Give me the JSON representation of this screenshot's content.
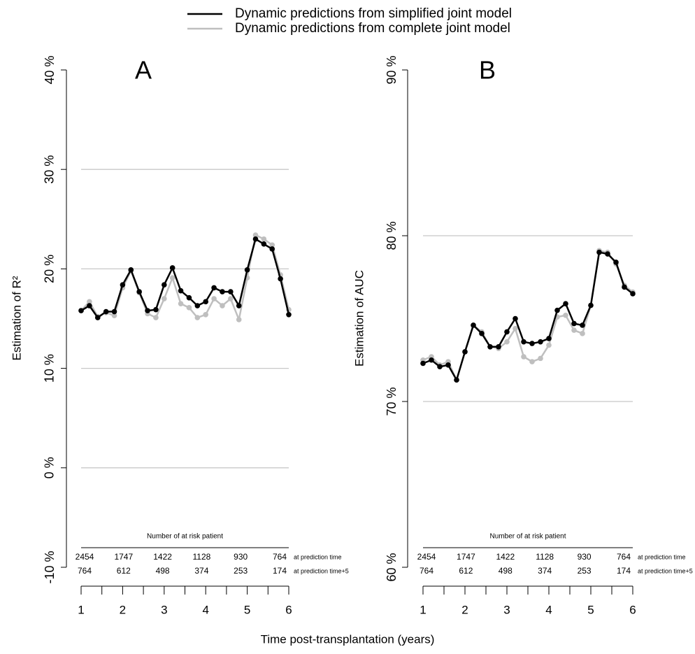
{
  "chart_data": [
    {
      "type": "line",
      "title": "A",
      "ylabel": "Estimation of R²",
      "x_label": "Time post-transplantation (years)",
      "x": [
        1,
        1.2,
        1.4,
        1.6,
        1.8,
        2,
        2.2,
        2.4,
        2.6,
        2.8,
        3,
        3.2,
        3.4,
        3.6,
        3.8,
        4,
        4.2,
        4.4,
        4.6,
        4.8,
        5,
        5.2,
        5.4,
        5.6,
        5.8,
        6
      ],
      "series": [
        {
          "name": "Dynamic predictions from simplified joint model",
          "color": "#000000",
          "values": [
            15.8,
            16.3,
            15.1,
            15.7,
            15.7,
            18.4,
            19.9,
            17.7,
            15.8,
            15.9,
            18.4,
            20.1,
            17.8,
            17.1,
            16.3,
            16.7,
            18.1,
            17.7,
            17.7,
            16.3,
            19.9,
            23.0,
            22.5,
            22.0,
            19.0,
            15.4
          ]
        },
        {
          "name": "Dynamic predictions from complete joint model",
          "color": "#bfbfbf",
          "values": [
            15.8,
            16.7,
            15.2,
            15.6,
            15.3,
            18.1,
            19.8,
            17.6,
            15.5,
            15.1,
            17.0,
            19.1,
            16.5,
            16.1,
            15.1,
            15.4,
            17.0,
            16.3,
            17.0,
            14.9,
            19.1,
            23.4,
            23.0,
            22.4,
            19.4,
            15.9
          ]
        }
      ],
      "xlim": [
        1,
        6
      ],
      "xticks": [
        1,
        2,
        3,
        4,
        5,
        6
      ],
      "xminorticks": [
        1.5,
        2.5,
        3.5,
        4.5,
        5.5
      ],
      "ylim": [
        -10,
        40
      ],
      "yticks": [
        {
          "value": -10,
          "label": "-10 %"
        },
        {
          "value": 0,
          "label": "0 %"
        },
        {
          "value": 10,
          "label": "10 %"
        },
        {
          "value": 20,
          "label": "20 %"
        },
        {
          "value": 30,
          "label": "30 %"
        },
        {
          "value": 40,
          "label": "40 %"
        }
      ],
      "grid": true,
      "risk_table": {
        "title": "Number of at risk patient",
        "rows": [
          {
            "label": "at prediction time",
            "values": [
              2454,
              1747,
              1422,
              1128,
              930,
              764
            ]
          },
          {
            "label": "at prediction time+5",
            "values": [
              764,
              612,
              498,
              374,
              253,
              174
            ]
          }
        ]
      }
    },
    {
      "type": "line",
      "title": "B",
      "ylabel": "Estimation of AUC",
      "x": [
        1,
        1.2,
        1.4,
        1.6,
        1.8,
        2,
        2.2,
        2.4,
        2.6,
        2.8,
        3,
        3.2,
        3.4,
        3.6,
        3.8,
        4,
        4.2,
        4.4,
        4.6,
        4.8,
        5,
        5.2,
        5.4,
        5.6,
        5.8,
        6
      ],
      "series": [
        {
          "color": "#000000",
          "values": [
            72.3,
            72.5,
            72.1,
            72.2,
            71.3,
            73.0,
            74.6,
            74.1,
            73.3,
            73.3,
            74.2,
            75.0,
            73.6,
            73.5,
            73.6,
            73.8,
            75.5,
            75.9,
            74.7,
            74.6,
            75.8,
            79.0,
            78.9,
            78.4,
            76.9,
            76.5
          ]
        },
        {
          "color": "#bfbfbf",
          "values": [
            72.5,
            72.7,
            72.2,
            72.4,
            71.3,
            73.0,
            74.6,
            74.2,
            73.3,
            73.2,
            73.6,
            74.4,
            72.7,
            72.4,
            72.6,
            73.4,
            75.1,
            75.2,
            74.3,
            74.1,
            75.8,
            79.1,
            79.0,
            78.3,
            77.0,
            76.6
          ]
        }
      ],
      "xlim": [
        1,
        6
      ],
      "xticks": [
        1,
        2,
        3,
        4,
        5,
        6
      ],
      "xminorticks": [
        1.5,
        2.5,
        3.5,
        4.5,
        5.5
      ],
      "ylim": [
        60,
        90
      ],
      "yticks": [
        {
          "value": 60,
          "label": "60 %"
        },
        {
          "value": 70,
          "label": "70 %"
        },
        {
          "value": 80,
          "label": "80 %"
        },
        {
          "value": 90,
          "label": "90 %"
        }
      ],
      "grid": true,
      "risk_table": {
        "title": "Number of at risk patient",
        "rows": [
          {
            "label": "at prediction time",
            "values": [
              2454,
              1747,
              1422,
              1128,
              930,
              764
            ]
          },
          {
            "label": "at prediction time+5",
            "values": [
              764,
              612,
              498,
              374,
              253,
              174
            ]
          }
        ]
      }
    }
  ]
}
